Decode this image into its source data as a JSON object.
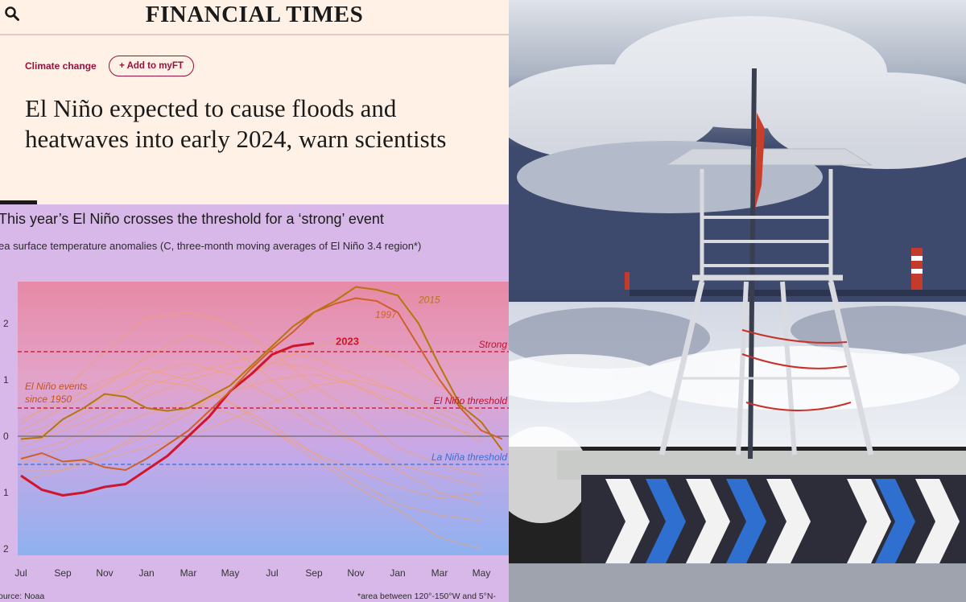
{
  "publication": "FINANCIAL TIMES",
  "article": {
    "topic": "Climate change",
    "myft_button": "+ Add to myFT",
    "headline": "El Niño expected to cause floods and heatwaves into early 2024, warn scientists"
  },
  "chart_data": {
    "type": "line",
    "title": "This year’s El Niño crosses the threshold for a ‘strong’ event",
    "subtitle": "ea surface temperature anomalies (C, three-month moving averages of El Niño 3.4 region*)",
    "x_tick_labels": [
      "Jul",
      "Sep",
      "Nov",
      "Jan",
      "Mar",
      "May",
      "Jul",
      "Sep",
      "Nov",
      "Jan",
      "Mar",
      "May"
    ],
    "y_tick_labels": [
      "2",
      "1",
      "0",
      "1",
      "2"
    ],
    "ylim": [
      -2.1,
      2.7
    ],
    "thresholds": [
      {
        "label": "Strong",
        "value": 1.5,
        "color": "#c0102f"
      },
      {
        "label": "El Niño threshold",
        "value": 0.5,
        "color": "#c0102f"
      },
      {
        "label": "La Niña threshold",
        "value": -0.5,
        "color": "#3a6fd0"
      }
    ],
    "series": [
      {
        "name": "2023",
        "color": "#d2142d",
        "x": [
          0,
          0.5,
          1,
          1.5,
          2,
          2.5,
          3,
          3.5,
          4,
          4.5,
          5,
          5.5,
          6,
          6.5,
          7
        ],
        "values": [
          -0.7,
          -0.95,
          -1.05,
          -1.0,
          -0.9,
          -0.85,
          -0.6,
          -0.35,
          0.0,
          0.35,
          0.8,
          1.1,
          1.45,
          1.6,
          1.65
        ]
      },
      {
        "name": "1997",
        "color": "#d0602a",
        "x": [
          0,
          0.5,
          1,
          1.5,
          2,
          2.5,
          3,
          3.5,
          4,
          4.5,
          5,
          5.5,
          6,
          6.5,
          7,
          7.5,
          8,
          8.5,
          9,
          9.5,
          10,
          10.5,
          11,
          11.5
        ],
        "values": [
          -0.4,
          -0.3,
          -0.45,
          -0.42,
          -0.55,
          -0.6,
          -0.4,
          -0.15,
          0.1,
          0.45,
          0.8,
          1.2,
          1.55,
          1.85,
          2.2,
          2.35,
          2.45,
          2.4,
          2.2,
          1.6,
          1.0,
          0.5,
          0.1,
          -0.05
        ]
      },
      {
        "name": "2015",
        "color": "#b5770c",
        "x": [
          0,
          0.5,
          1,
          1.5,
          2,
          2.5,
          3,
          3.5,
          4,
          4.5,
          5,
          5.5,
          6,
          6.5,
          7,
          7.5,
          8,
          8.5,
          9,
          9.5,
          10,
          10.5,
          11,
          11.5
        ],
        "values": [
          -0.05,
          -0.02,
          0.3,
          0.5,
          0.75,
          0.7,
          0.5,
          0.45,
          0.5,
          0.7,
          0.9,
          1.25,
          1.6,
          1.95,
          2.2,
          2.4,
          2.65,
          2.6,
          2.5,
          2.0,
          1.25,
          0.55,
          0.25,
          -0.25
        ]
      }
    ],
    "annotations": [
      "El Niño events since 1950"
    ]
  },
  "chart_notes": {
    "source": "ource: Noaa",
    "footnote": "*area between 120°-150°W and 5°N-"
  }
}
